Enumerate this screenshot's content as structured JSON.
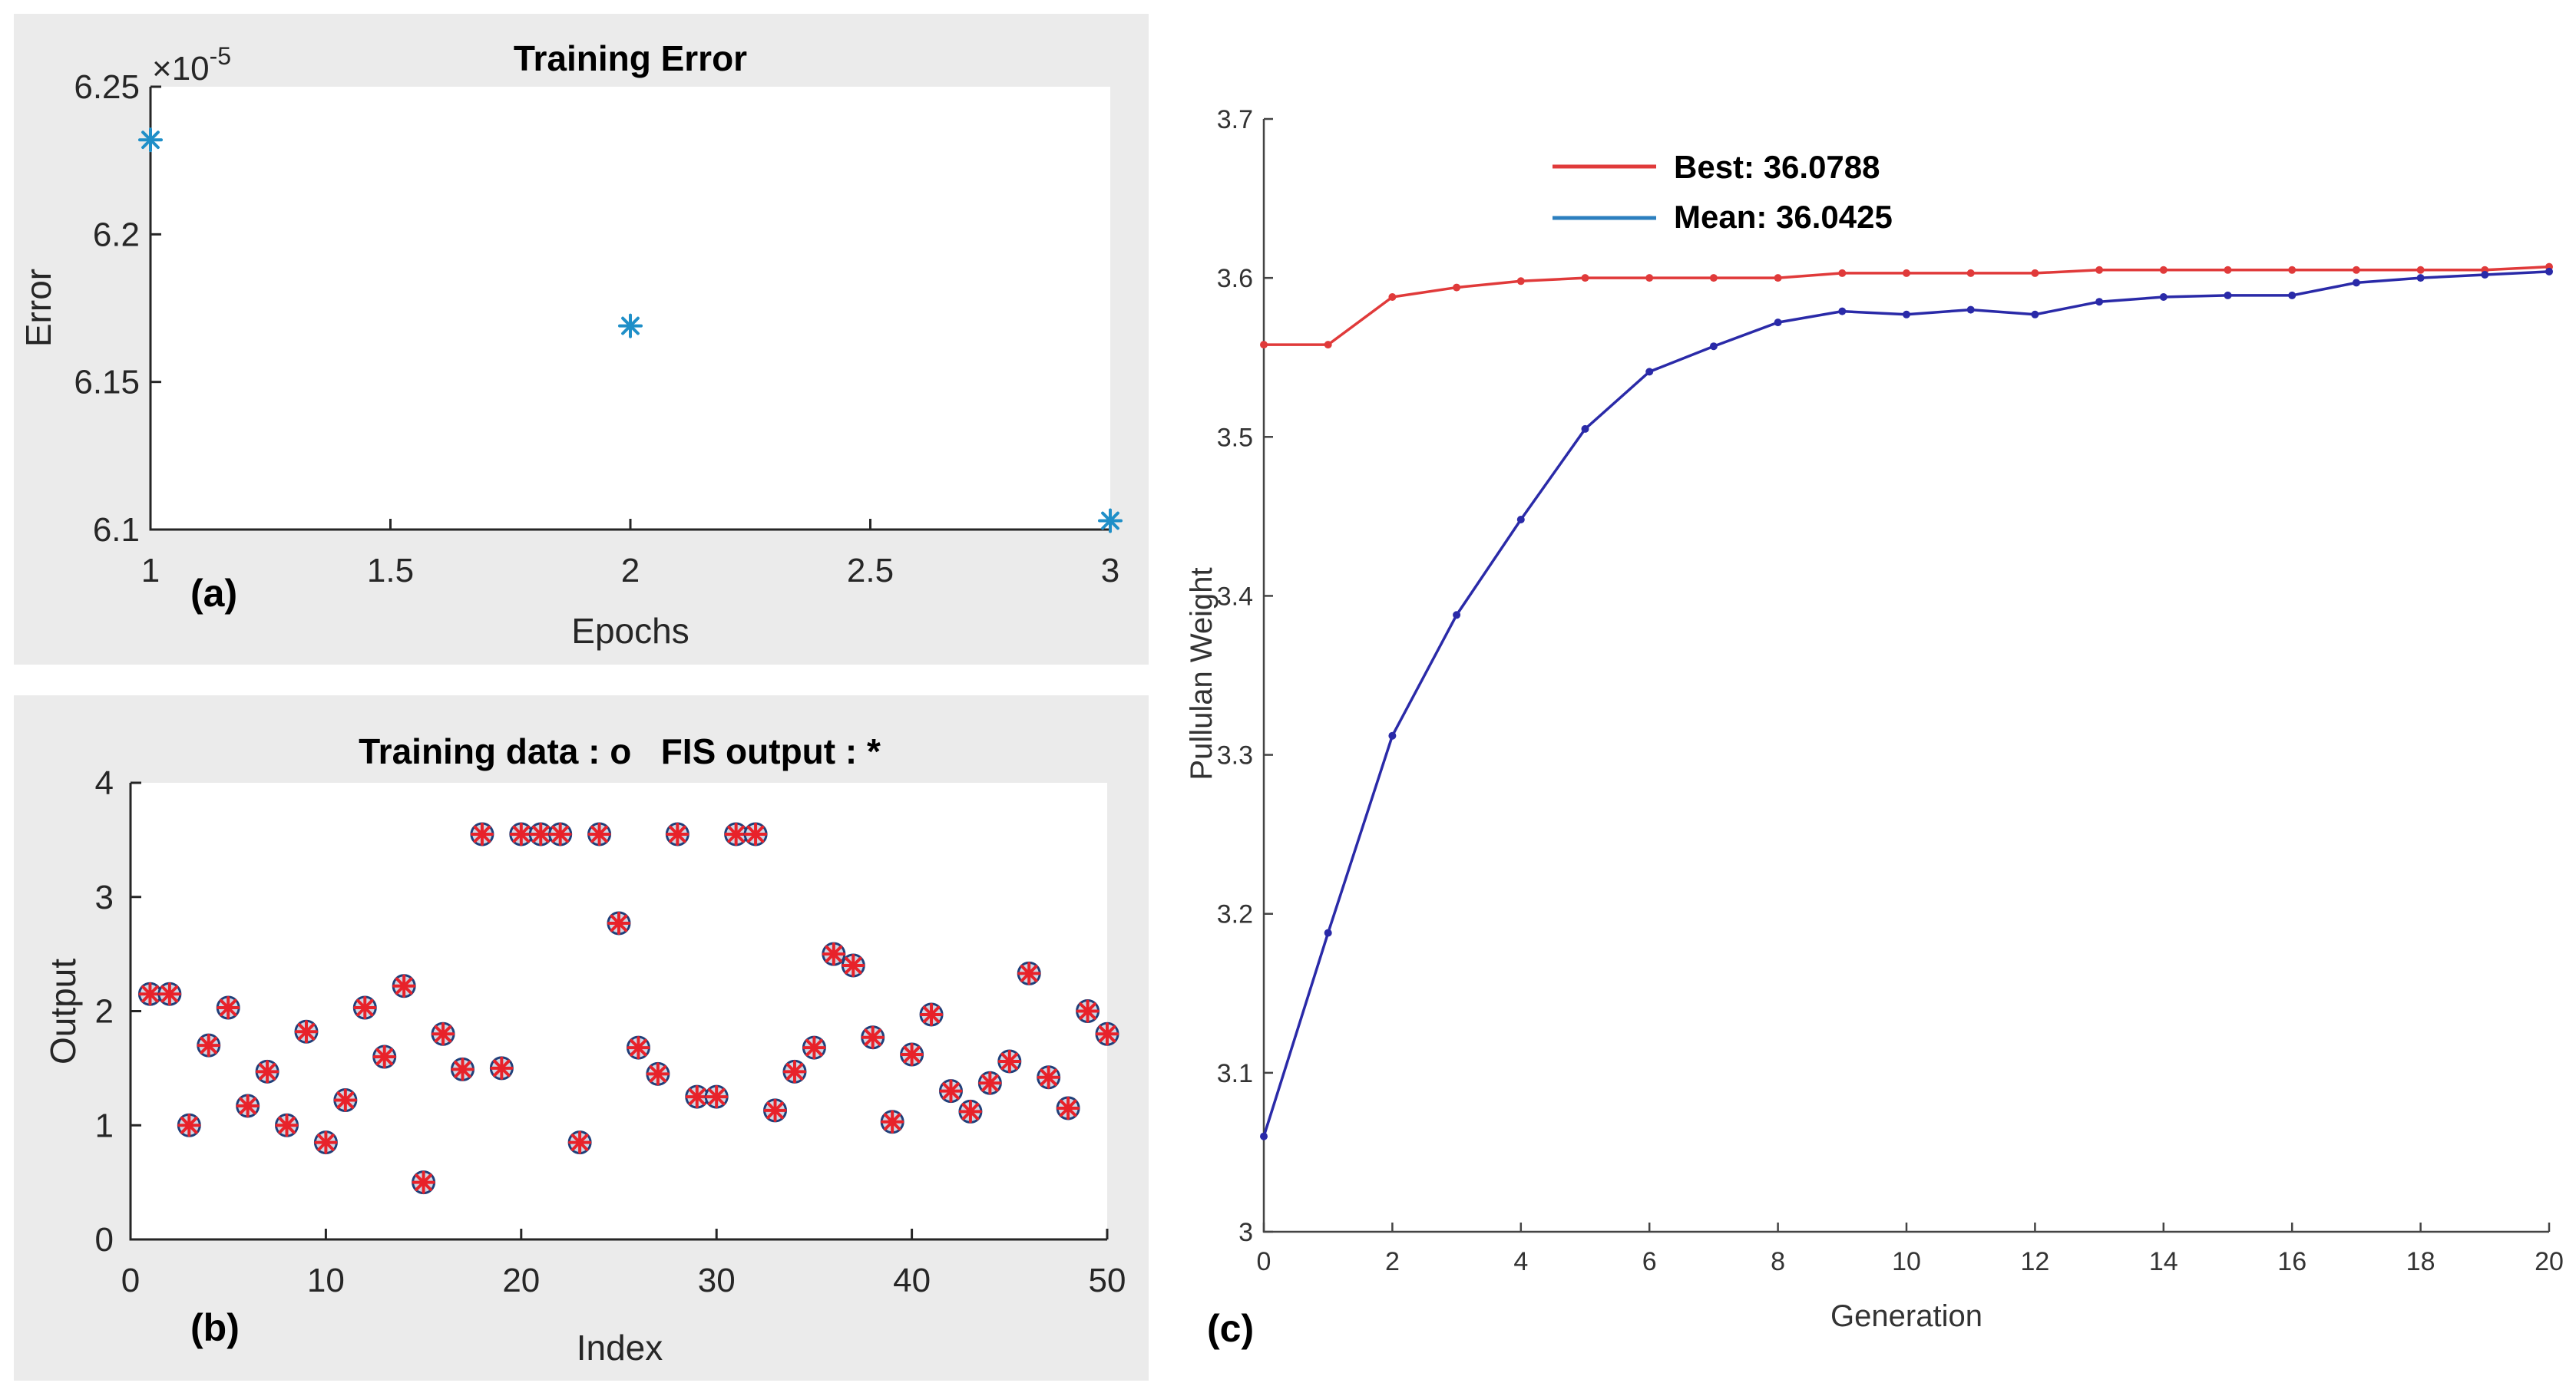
{
  "chart_data": [
    {
      "id": "a",
      "type": "scatter",
      "panel_label": "(a)",
      "title": "Training Error",
      "xlabel": "Epochs",
      "ylabel": "Error",
      "y_multiplier_label": "×10",
      "y_multiplier_exponent": "-5",
      "xlim": [
        1,
        3
      ],
      "ylim": [
        6.1,
        6.25
      ],
      "xticks": [
        1,
        1.5,
        2,
        2.5,
        3
      ],
      "xtick_labels": [
        "1",
        "1.5",
        "2",
        "2.5",
        "3"
      ],
      "yticks": [
        6.1,
        6.15,
        6.2,
        6.25
      ],
      "ytick_labels": [
        "6.1",
        "6.15",
        "6.2",
        "6.25"
      ],
      "marker": "*",
      "marker_color": "#1f8fc8",
      "x": [
        1,
        2,
        3
      ],
      "y": [
        6.232,
        6.169,
        6.103
      ]
    },
    {
      "id": "b",
      "type": "scatter",
      "panel_label": "(b)",
      "title": "Training data : o   FIS output : *",
      "xlabel": "Index",
      "ylabel": "Output",
      "xlim": [
        0,
        50
      ],
      "ylim": [
        0,
        4
      ],
      "xticks": [
        0,
        10,
        20,
        30,
        40,
        50
      ],
      "xtick_labels": [
        "0",
        "10",
        "20",
        "30",
        "40",
        "50"
      ],
      "yticks": [
        0,
        1,
        2,
        3,
        4
      ],
      "ytick_labels": [
        "0",
        "1",
        "2",
        "3",
        "4"
      ],
      "series": [
        {
          "name": "Training data",
          "marker": "o",
          "color": "#1f3f7a"
        },
        {
          "name": "FIS output",
          "marker": "*",
          "color": "#e8222a"
        }
      ],
      "x": [
        1,
        2,
        3,
        4,
        5,
        6,
        7,
        8,
        9,
        10,
        11,
        12,
        13,
        14,
        15,
        16,
        17,
        18,
        19,
        20,
        21,
        22,
        23,
        24,
        25,
        26,
        27,
        28,
        29,
        30,
        31,
        32,
        33,
        34,
        35,
        36,
        37,
        38,
        39,
        40,
        41,
        42,
        43,
        44,
        45,
        46,
        47,
        48,
        49,
        50
      ],
      "values": [
        2.15,
        2.15,
        1.0,
        1.7,
        2.03,
        1.17,
        1.47,
        1.0,
        1.82,
        0.85,
        1.22,
        2.03,
        1.6,
        2.22,
        0.5,
        1.8,
        1.49,
        3.55,
        1.5,
        3.55,
        3.55,
        3.55,
        0.85,
        3.55,
        2.77,
        1.68,
        1.45,
        3.55,
        1.25,
        1.25,
        3.55,
        3.55,
        1.13,
        1.47,
        1.68,
        2.5,
        2.4,
        1.77,
        1.03,
        1.62,
        1.97,
        1.3,
        1.12,
        1.37,
        1.56,
        2.33,
        1.42,
        1.15,
        2.0,
        1.8
      ]
    },
    {
      "id": "c",
      "type": "line",
      "panel_label": "(c)",
      "title": "",
      "xlabel": "Generation",
      "ylabel": "Pullulan Weight",
      "xlim": [
        0,
        20
      ],
      "ylim": [
        3,
        3.7
      ],
      "xticks": [
        0,
        2,
        4,
        6,
        8,
        10,
        12,
        14,
        16,
        18,
        20
      ],
      "xtick_labels": [
        "0",
        "2",
        "4",
        "6",
        "8",
        "10",
        "12",
        "14",
        "16",
        "18",
        "20"
      ],
      "yticks": [
        3,
        3.1,
        3.2,
        3.3,
        3.4,
        3.5,
        3.6,
        3.7
      ],
      "ytick_labels": [
        "3",
        "3.1",
        "3.2",
        "3.3",
        "3.4",
        "3.5",
        "3.6",
        "3.7"
      ],
      "legend_position": "top-left",
      "x": [
        0,
        1,
        2,
        3,
        4,
        5,
        6,
        7,
        8,
        9,
        10,
        11,
        12,
        13,
        14,
        15,
        16,
        17,
        18,
        19,
        20
      ],
      "series": [
        {
          "name": "Best",
          "legend_label": "Best: 36.0788",
          "color": "#e03a3a",
          "legend_color": "#e03a3a",
          "values": [
            3.558,
            3.558,
            3.588,
            3.594,
            3.598,
            3.6,
            3.6,
            3.6,
            3.6,
            3.603,
            3.603,
            3.603,
            3.603,
            3.605,
            3.605,
            3.605,
            3.605,
            3.605,
            3.605,
            3.605,
            3.607
          ]
        },
        {
          "name": "Mean",
          "legend_label": "Mean: 36.0425",
          "color": "#2a2aa8",
          "legend_color": "#2c7fbf",
          "values": [
            3.06,
            3.188,
            3.312,
            3.388,
            3.448,
            3.505,
            3.541,
            3.557,
            3.572,
            3.579,
            3.577,
            3.58,
            3.577,
            3.585,
            3.588,
            3.589,
            3.589,
            3.597,
            3.6,
            3.602,
            3.604
          ]
        }
      ]
    }
  ]
}
